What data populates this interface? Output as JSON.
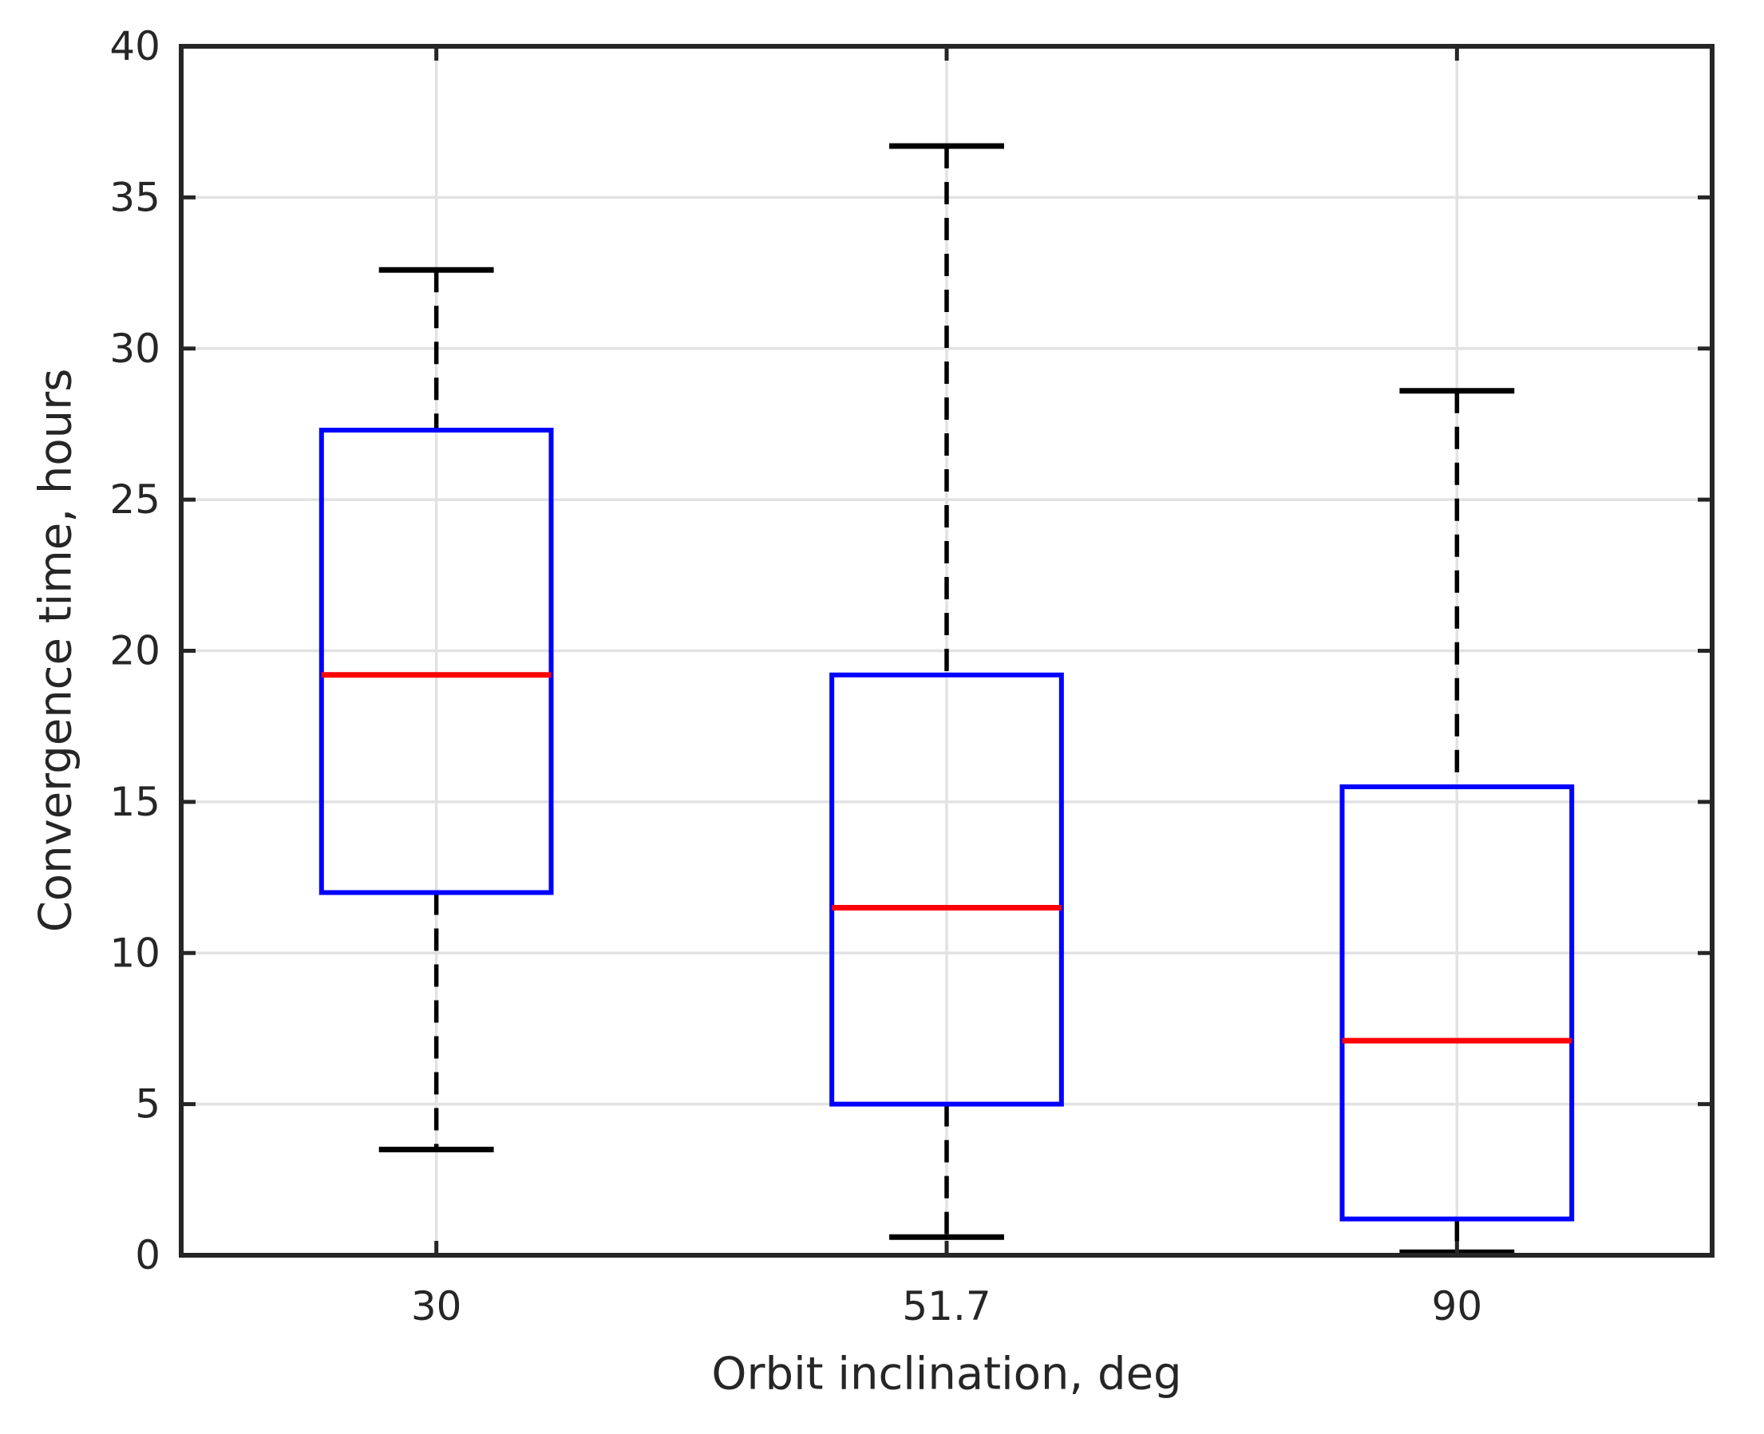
{
  "chart_data": {
    "type": "boxplot",
    "title": "",
    "xlabel": "Orbit inclination, deg",
    "ylabel": "Convergence time, hours",
    "categories": [
      "30",
      "51.7",
      "90"
    ],
    "ylim": [
      0,
      40
    ],
    "yticks": [
      0,
      5,
      10,
      15,
      20,
      25,
      30,
      35,
      40
    ],
    "grid": true,
    "legend": "none",
    "series": [
      {
        "category": "30",
        "whisker_low": 3.5,
        "q1": 12.0,
        "median": 19.2,
        "q3": 27.3,
        "whisker_high": 32.6,
        "outliers": []
      },
      {
        "category": "51.7",
        "whisker_low": 0.6,
        "q1": 5.0,
        "median": 11.5,
        "q3": 19.2,
        "whisker_high": 36.7,
        "outliers": []
      },
      {
        "category": "90",
        "whisker_low": 0.1,
        "q1": 1.2,
        "median": 7.1,
        "q3": 15.5,
        "whisker_high": 28.6,
        "outliers": []
      }
    ],
    "colors": {
      "box": "#0000ff",
      "median": "#ff0000",
      "whisker": "#000000",
      "cap": "#000000",
      "grid": "#e2e2e2",
      "axis": "#262626",
      "text": "#262626",
      "background": "#ffffff"
    }
  }
}
